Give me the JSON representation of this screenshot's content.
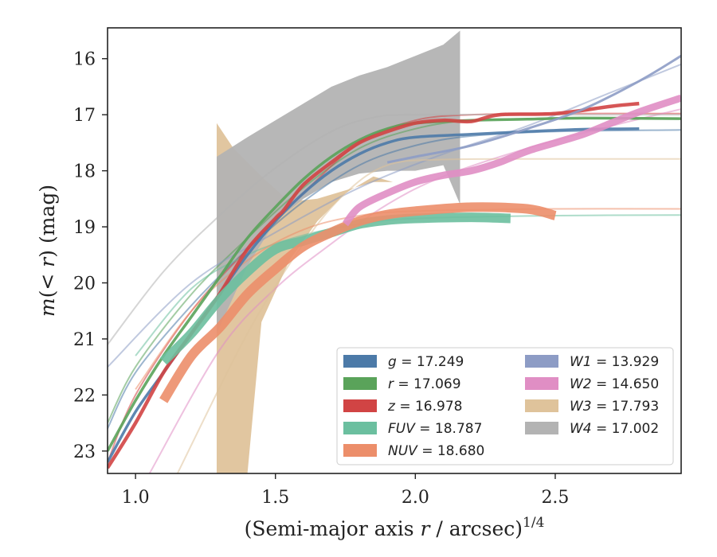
{
  "chart_data": {
    "type": "line",
    "title": "",
    "xlabel": "(Semi-major axis r / arcsec)",
    "xlabel_sup": "1/4",
    "ylabel": "m(< r) (mag)",
    "xlim": [
      0.9,
      2.95
    ],
    "ylim": [
      23.4,
      15.45
    ],
    "y_inverted": true,
    "grid": false,
    "legend_placement": "lower-right",
    "xticks": [
      "1.0",
      "1.5",
      "2.0",
      "2.5"
    ],
    "xtick_values": [
      1.0,
      1.5,
      2.0,
      2.5
    ],
    "yticks": [
      "16",
      "17",
      "18",
      "19",
      "20",
      "21",
      "22",
      "23"
    ],
    "ytick_values": [
      16,
      17,
      18,
      19,
      20,
      21,
      22,
      23
    ],
    "series": [
      {
        "name": "g = 17.249",
        "label_var": "g",
        "label_val": "17.249",
        "color": "#4c7aa8",
        "model": [
          [
            0.9,
            22.6
          ],
          [
            1.0,
            21.6
          ],
          [
            1.2,
            20.4
          ],
          [
            1.4,
            19.4
          ],
          [
            1.6,
            18.55
          ],
          [
            1.8,
            17.9
          ],
          [
            2.0,
            17.55
          ],
          [
            2.2,
            17.38
          ],
          [
            2.5,
            17.3
          ],
          [
            2.95,
            17.27
          ]
        ],
        "data": [
          [
            0.9,
            23.2
          ],
          [
            1.0,
            22.3
          ],
          [
            1.1,
            21.6
          ],
          [
            1.2,
            20.9
          ],
          [
            1.3,
            20.2
          ],
          [
            1.4,
            19.5
          ],
          [
            1.5,
            18.9
          ],
          [
            1.6,
            18.4
          ],
          [
            1.7,
            18.0
          ],
          [
            1.8,
            17.7
          ],
          [
            1.9,
            17.5
          ],
          [
            2.0,
            17.4
          ],
          [
            2.2,
            17.35
          ],
          [
            2.4,
            17.3
          ],
          [
            2.6,
            17.26
          ],
          [
            2.8,
            17.25
          ]
        ],
        "data_width": 3.5
      },
      {
        "name": "r = 17.069",
        "label_var": "r",
        "label_val": "17.069",
        "color": "#5aa35a",
        "model": [
          [
            0.9,
            22.5
          ],
          [
            1.0,
            21.5
          ],
          [
            1.2,
            20.2
          ],
          [
            1.4,
            19.2
          ],
          [
            1.6,
            18.3
          ],
          [
            1.8,
            17.6
          ],
          [
            2.0,
            17.25
          ],
          [
            2.2,
            17.1
          ],
          [
            2.5,
            17.07
          ],
          [
            2.95,
            17.07
          ]
        ],
        "data": [
          [
            0.9,
            23.0
          ],
          [
            1.0,
            22.1
          ],
          [
            1.1,
            21.3
          ],
          [
            1.2,
            20.6
          ],
          [
            1.3,
            19.9
          ],
          [
            1.4,
            19.2
          ],
          [
            1.5,
            18.65
          ],
          [
            1.6,
            18.15
          ],
          [
            1.7,
            17.75
          ],
          [
            1.8,
            17.45
          ],
          [
            1.9,
            17.25
          ],
          [
            2.0,
            17.15
          ],
          [
            2.2,
            17.1
          ],
          [
            2.4,
            17.08
          ],
          [
            2.6,
            17.06
          ],
          [
            2.95,
            17.07
          ]
        ],
        "data_width": 3.5
      },
      {
        "name": "z = 16.978",
        "label_var": "z",
        "label_val": "16.978",
        "color": "#d14444",
        "model": [
          [
            0.9,
            23.2
          ],
          [
            1.0,
            22.0
          ],
          [
            1.2,
            20.5
          ],
          [
            1.4,
            19.4
          ],
          [
            1.6,
            18.4
          ],
          [
            1.8,
            17.5
          ],
          [
            2.0,
            17.1
          ],
          [
            2.2,
            17.0
          ],
          [
            2.5,
            16.98
          ],
          [
            2.95,
            16.98
          ]
        ],
        "data": [
          [
            0.9,
            23.3
          ],
          [
            1.0,
            22.5
          ],
          [
            1.1,
            21.6
          ],
          [
            1.2,
            20.9
          ],
          [
            1.3,
            20.2
          ],
          [
            1.4,
            19.4
          ],
          [
            1.5,
            18.85
          ],
          [
            1.53,
            18.7
          ],
          [
            1.6,
            18.25
          ],
          [
            1.7,
            17.85
          ],
          [
            1.8,
            17.5
          ],
          [
            1.9,
            17.3
          ],
          [
            2.0,
            17.15
          ],
          [
            2.1,
            17.1
          ],
          [
            2.2,
            17.12
          ],
          [
            2.3,
            17.0
          ],
          [
            2.5,
            16.98
          ],
          [
            2.7,
            16.85
          ],
          [
            2.8,
            16.8
          ]
        ],
        "data_width": 4.5
      },
      {
        "name": "FUV = 18.787",
        "label_var": "FUV",
        "label_val": "18.787",
        "color": "#6bbf9f",
        "model": [
          [
            1.0,
            21.3
          ],
          [
            1.2,
            20.1
          ],
          [
            1.4,
            19.5
          ],
          [
            1.6,
            19.15
          ],
          [
            1.8,
            18.95
          ],
          [
            2.0,
            18.85
          ],
          [
            2.5,
            18.8
          ],
          [
            2.95,
            18.79
          ]
        ],
        "data": [
          [
            1.1,
            21.4
          ],
          [
            1.2,
            20.9
          ],
          [
            1.3,
            20.3
          ],
          [
            1.4,
            19.8
          ],
          [
            1.5,
            19.4
          ],
          [
            1.6,
            19.25
          ],
          [
            1.7,
            19.1
          ],
          [
            1.8,
            18.95
          ],
          [
            1.9,
            18.88
          ],
          [
            2.0,
            18.85
          ],
          [
            2.2,
            18.83
          ],
          [
            2.34,
            18.85
          ]
        ],
        "data_width": 12
      },
      {
        "name": "NUV = 18.680",
        "label_var": "NUV",
        "label_val": "18.680",
        "color": "#ec8e6a",
        "model": [
          [
            1.0,
            21.9
          ],
          [
            1.2,
            20.5
          ],
          [
            1.4,
            19.6
          ],
          [
            1.6,
            19.05
          ],
          [
            1.8,
            18.8
          ],
          [
            2.0,
            18.72
          ],
          [
            2.5,
            18.68
          ],
          [
            2.95,
            18.68
          ]
        ],
        "data": [
          [
            1.1,
            22.1
          ],
          [
            1.2,
            21.3
          ],
          [
            1.3,
            20.8
          ],
          [
            1.4,
            20.2
          ],
          [
            1.5,
            19.75
          ],
          [
            1.6,
            19.35
          ],
          [
            1.7,
            19.1
          ],
          [
            1.8,
            18.9
          ],
          [
            1.9,
            18.78
          ],
          [
            2.0,
            18.72
          ],
          [
            2.2,
            18.65
          ],
          [
            2.4,
            18.68
          ],
          [
            2.5,
            18.8
          ]
        ],
        "data_width": 12
      },
      {
        "name": "W1 = 13.929",
        "label_var": "W1",
        "label_val": "13.929",
        "color": "#8d9cc5",
        "model": [
          [
            0.9,
            21.5
          ],
          [
            1.2,
            20.0
          ],
          [
            1.5,
            19.1
          ],
          [
            1.8,
            18.3
          ],
          [
            2.1,
            17.7
          ],
          [
            2.4,
            17.2
          ],
          [
            2.7,
            16.6
          ],
          [
            2.95,
            16.1
          ]
        ],
        "data": [
          [
            1.9,
            17.85
          ],
          [
            2.0,
            17.75
          ],
          [
            2.2,
            17.55
          ],
          [
            2.4,
            17.25
          ],
          [
            2.6,
            16.9
          ],
          [
            2.8,
            16.4
          ],
          [
            2.95,
            15.95
          ]
        ],
        "data_width": 3
      },
      {
        "name": "W2 = 14.650",
        "label_var": "W2",
        "label_val": "14.650",
        "color": "#e08ec4",
        "model": [
          [
            1.05,
            23.4
          ],
          [
            1.3,
            21.2
          ],
          [
            1.5,
            20.1
          ],
          [
            1.7,
            19.3
          ],
          [
            1.9,
            18.6
          ],
          [
            2.1,
            18.1
          ],
          [
            2.4,
            17.6
          ],
          [
            2.7,
            17.2
          ],
          [
            2.95,
            16.9
          ]
        ],
        "data": [
          [
            1.75,
            18.95
          ],
          [
            1.8,
            18.65
          ],
          [
            1.9,
            18.4
          ],
          [
            2.0,
            18.2
          ],
          [
            2.1,
            18.08
          ],
          [
            2.2,
            18.0
          ],
          [
            2.3,
            17.85
          ],
          [
            2.4,
            17.65
          ],
          [
            2.5,
            17.5
          ],
          [
            2.6,
            17.35
          ],
          [
            2.7,
            17.15
          ],
          [
            2.8,
            16.95
          ],
          [
            2.95,
            16.7
          ]
        ],
        "data_width": 9
      },
      {
        "name": "W3 = 17.793",
        "label_var": "W3",
        "label_val": "17.793",
        "color": "#dfc39b",
        "model": [
          [
            1.15,
            23.4
          ],
          [
            1.4,
            20.9
          ],
          [
            1.6,
            19.3
          ],
          [
            1.75,
            18.4
          ],
          [
            1.9,
            17.9
          ],
          [
            2.1,
            17.8
          ],
          [
            2.5,
            17.79
          ],
          [
            2.95,
            17.79
          ]
        ],
        "data_upper": [
          [
            1.29,
            17.15
          ],
          [
            1.35,
            17.6
          ],
          [
            1.45,
            18.1
          ],
          [
            1.55,
            18.55
          ],
          [
            1.65,
            18.5
          ],
          [
            1.75,
            18.35
          ],
          [
            1.85,
            18.2
          ],
          [
            1.92,
            18.2
          ]
        ],
        "data_lower": [
          [
            1.29,
            23.4
          ],
          [
            1.4,
            23.4
          ],
          [
            1.45,
            20.7
          ],
          [
            1.55,
            19.6
          ],
          [
            1.65,
            18.9
          ],
          [
            1.75,
            18.4
          ],
          [
            1.85,
            18.1
          ],
          [
            1.92,
            18.2
          ]
        ]
      },
      {
        "name": "W4 = 17.002",
        "label_var": "W4",
        "label_val": "17.002",
        "color": "#b3b3b3",
        "model": [
          [
            0.9,
            21.1
          ],
          [
            1.1,
            19.8
          ],
          [
            1.3,
            18.8
          ],
          [
            1.5,
            17.95
          ],
          [
            1.7,
            17.3
          ],
          [
            1.85,
            17.05
          ],
          [
            2.0,
            17.0
          ],
          [
            2.5,
            17.0
          ],
          [
            2.95,
            17.0
          ]
        ],
        "data_upper": [
          [
            1.29,
            17.75
          ],
          [
            1.4,
            17.4
          ],
          [
            1.5,
            17.1
          ],
          [
            1.6,
            16.8
          ],
          [
            1.7,
            16.5
          ],
          [
            1.8,
            16.3
          ],
          [
            1.9,
            16.15
          ],
          [
            2.0,
            15.95
          ],
          [
            2.1,
            15.75
          ],
          [
            2.16,
            15.5
          ]
        ],
        "data_lower": [
          [
            1.29,
            20.9
          ],
          [
            1.4,
            19.7
          ],
          [
            1.5,
            18.9
          ],
          [
            1.6,
            18.5
          ],
          [
            1.7,
            18.2
          ],
          [
            1.8,
            18.05
          ],
          [
            1.9,
            18.0
          ],
          [
            2.0,
            18.0
          ],
          [
            2.1,
            17.9
          ],
          [
            2.16,
            18.6
          ]
        ]
      }
    ]
  }
}
